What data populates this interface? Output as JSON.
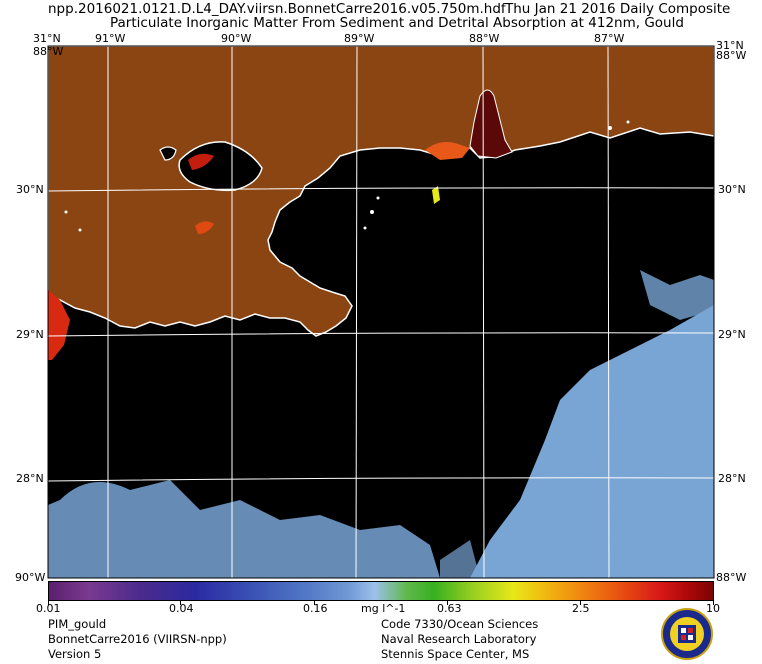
{
  "header": {
    "filename": "npp.2016021.0121.D.L4_DAY.viirsn.BonnetCarre2016.v05.750m.hdf",
    "date_text": "Thu Jan 21 2016 Daily Composite",
    "product_title": "Particulate Inorganic Matter From Sediment and Detrital Absorption at 412nm, Gould"
  },
  "map": {
    "top_lon_labels": [
      "91°W",
      "90°W",
      "89°W",
      "88°W",
      "87°W"
    ],
    "top_corner_lat_left": "31°N",
    "top_corner_lat_right": "31°N",
    "left_lat_labels": [
      "30°N",
      "29°N",
      "28°N"
    ],
    "right_lat_labels": [
      "30°N",
      "29°N",
      "28°N"
    ],
    "corner_overlap_top_left": "88°W",
    "corner_overlap_top_right": "88°W",
    "corner_overlap_bottom_left": "90°W",
    "corner_overlap_bottom_right": "88°W",
    "colors": {
      "land": "#8b4513",
      "water": "#000000",
      "coastline": "#ffffff",
      "grid": "#ffffff",
      "cloud": "#7faee0"
    }
  },
  "colorbar": {
    "labels": [
      "0.01",
      "0.04",
      "0.16",
      "mg l^-1",
      "0.63",
      "2.5",
      "10"
    ]
  },
  "footer": {
    "left": [
      "PIM_gould",
      "BonnetCarre2016 (VIIRSN-npp)",
      "Version 5"
    ],
    "right": [
      "Code 7330/Ocean Sciences",
      "Naval Research Laboratory",
      "Stennis Space Center, MS"
    ]
  }
}
